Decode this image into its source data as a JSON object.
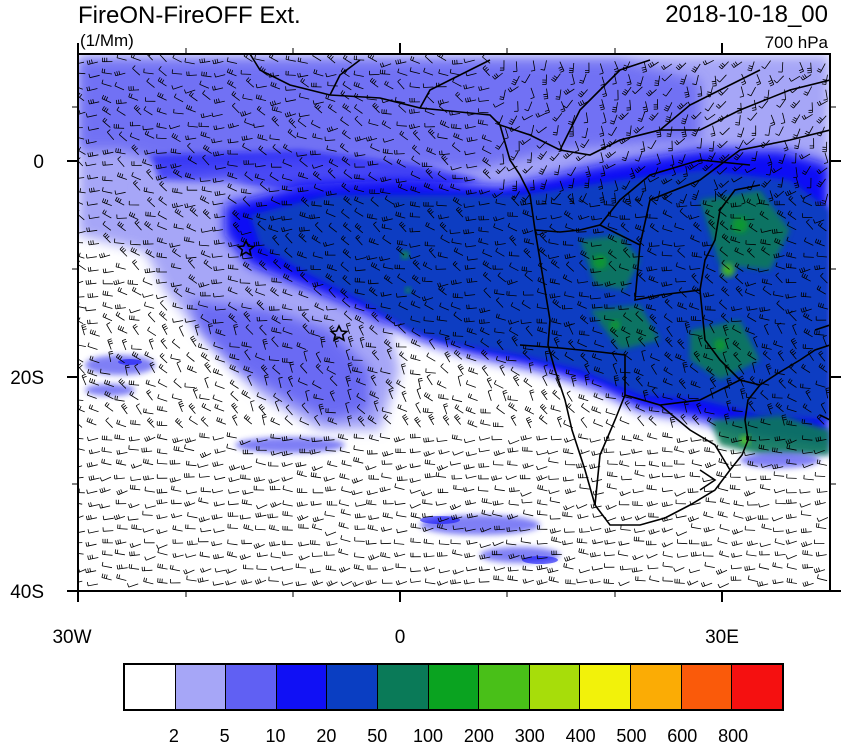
{
  "header": {
    "title": "FireON-FireOFF Ext.",
    "units": "(1/Mm)",
    "datetime": "2018-10-18_00",
    "level": "700 hPa"
  },
  "axes": {
    "x_ticks": [
      "30W",
      "0",
      "30E"
    ],
    "y_ticks": [
      "0",
      "20S",
      "40S"
    ]
  },
  "map": {
    "projection": "cylindrical equidistant",
    "lon_range": [
      -30,
      40
    ],
    "lat_range": [
      -40,
      10
    ],
    "field": "extinction difference",
    "overlay": "wind barbs",
    "markers": [
      "star",
      "star"
    ],
    "colors": {
      "land_border": "#000000",
      "ocean_background": "#ffffff"
    }
  },
  "colorbar": {
    "colors": [
      "#ffffff",
      "#a6a6f7",
      "#6060f3",
      "#1010f5",
      "#0a3ec2",
      "#0a7a58",
      "#0aa320",
      "#49c018",
      "#a7dd0a",
      "#f2f20a",
      "#fbac05",
      "#fa5a0a",
      "#f51010"
    ],
    "labels": [
      "2",
      "5",
      "10",
      "20",
      "50",
      "100",
      "200",
      "300",
      "400",
      "500",
      "600",
      "800"
    ]
  }
}
